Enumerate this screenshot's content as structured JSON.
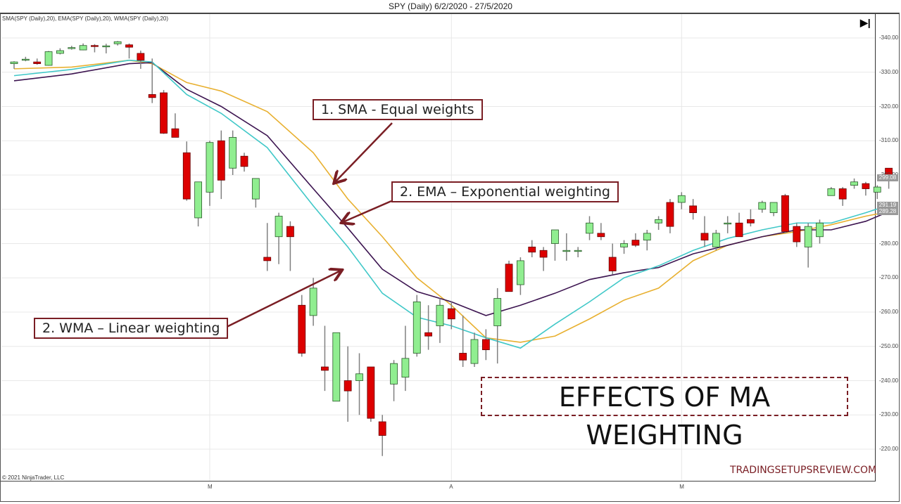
{
  "header": {
    "title": "SPY (Daily)  6/2/2020 - 27/5/2020"
  },
  "indicator_label": "SMA(SPY (Daily),20), EMA(SPY (Daily),20), WMA(SPY (Daily),20)",
  "copyright": "© 2021 NinjaTrader, LLC",
  "scroll_end_icon": "▶|",
  "callouts": {
    "sma": "1. SMA - Equal weights",
    "ema": "2. EMA – Exponential weighting",
    "wma": "2. WMA – Linear weighting"
  },
  "headline": "EFFECTS OF MA WEIGHTING",
  "watermark": "TRADINGSETUPSREVIEW.COM",
  "colors": {
    "up": "#90ee90",
    "down": "#dd0000",
    "wick": "#808080",
    "sma": "#e8b030",
    "ema": "#40c8c8",
    "wma": "#3c1450",
    "annotation": "#7a1e24"
  },
  "price_tags": [
    {
      "label": "299.08",
      "price": 299.08
    },
    {
      "label": "291.19",
      "price": 291.19
    },
    {
      "label": "289.28",
      "price": 289.28
    }
  ],
  "chart_data": {
    "type": "candlestick",
    "title": "SPY (Daily)  6/2/2020 - 27/5/2020",
    "ylim": [
      215,
      345
    ],
    "yticks": [
      220,
      230,
      240,
      250,
      260,
      270,
      280,
      290,
      300,
      310,
      320,
      330,
      340
    ],
    "xticks": [
      {
        "label": "M",
        "index": 17
      },
      {
        "label": "A",
        "index": 38
      },
      {
        "label": "M",
        "index": 58
      }
    ],
    "legend": [
      "SMA(SPY (Daily),20)",
      "EMA(SPY (Daily),20)",
      "WMA(SPY (Daily),20)"
    ],
    "candles": [
      [
        332.5,
        333.2,
        331.0,
        333.0
      ],
      [
        333.8,
        334.5,
        333.2,
        333.8
      ],
      [
        333.0,
        334.0,
        332.2,
        332.5
      ],
      [
        332.0,
        336.2,
        331.9,
        336.0
      ],
      [
        335.5,
        337.0,
        335.2,
        336.3
      ],
      [
        337.0,
        337.7,
        336.6,
        337.2
      ],
      [
        336.5,
        338.4,
        336.4,
        337.8
      ],
      [
        337.8,
        338.2,
        335.8,
        337.6
      ],
      [
        337.7,
        338.3,
        335.5,
        337.7
      ],
      [
        338.3,
        339.1,
        337.8,
        338.9
      ],
      [
        338.0,
        338.4,
        334.0,
        337.3
      ],
      [
        335.5,
        336.3,
        331.0,
        333.5
      ],
      [
        323.5,
        334.0,
        321.0,
        322.6
      ],
      [
        324.0,
        324.8,
        312.0,
        312.2
      ],
      [
        313.5,
        318.0,
        311.0,
        311.0
      ],
      [
        306.5,
        309.8,
        292.5,
        293.0
      ],
      [
        287.5,
        295.0,
        285.0,
        298.0
      ],
      [
        295.0,
        310.0,
        291.0,
        309.5
      ],
      [
        310.0,
        313.0,
        293.0,
        298.5
      ],
      [
        302.0,
        313.0,
        300.0,
        311.0
      ],
      [
        305.5,
        306.5,
        301.0,
        302.5
      ],
      [
        293.0,
        299.0,
        290.5,
        299.0
      ],
      [
        276.0,
        286.0,
        272.0,
        275.0
      ],
      [
        282.0,
        289.0,
        274.0,
        288.0
      ],
      [
        285.0,
        286.5,
        272.0,
        282.0
      ],
      [
        262.0,
        265.0,
        247.0,
        248.0
      ],
      [
        259.0,
        270.0,
        256.0,
        267.0
      ],
      [
        244.0,
        256.0,
        237.0,
        243.0
      ],
      [
        234.0,
        254.0,
        238.0,
        254.0
      ],
      [
        240.0,
        250.0,
        228.0,
        237.0
      ],
      [
        240.0,
        248.0,
        230.0,
        242.0
      ],
      [
        244.0,
        244.0,
        228.0,
        229.0
      ],
      [
        228.0,
        230.0,
        218.0,
        224.0
      ],
      [
        239.0,
        246.0,
        234.0,
        245.0
      ],
      [
        241.0,
        256.0,
        237.0,
        246.5
      ],
      [
        248.0,
        265.0,
        247.0,
        263.0
      ],
      [
        254.0,
        262.0,
        249.0,
        253.0
      ],
      [
        256.0,
        264.0,
        251.0,
        262.0
      ],
      [
        261.0,
        263.0,
        255.0,
        258.0
      ],
      [
        248.0,
        259.0,
        244.0,
        246.0
      ],
      [
        245.0,
        254.0,
        244.0,
        252.0
      ],
      [
        252.0,
        255.0,
        246.0,
        249.0
      ],
      [
        256.0,
        267.0,
        245.0,
        264.0
      ],
      [
        274.0,
        275.0,
        266.0,
        266.0
      ],
      [
        268.0,
        276.0,
        265.0,
        275.0
      ],
      [
        279.0,
        281.0,
        276.0,
        277.5
      ],
      [
        278.0,
        279.0,
        272.0,
        276.0
      ],
      [
        280.0,
        284.0,
        275.0,
        284.0
      ],
      [
        278.0,
        283.0,
        275.0,
        278.0
      ],
      [
        278.0,
        279.0,
        276.0,
        278.0
      ],
      [
        283.0,
        288.0,
        281.0,
        286.0
      ],
      [
        283.0,
        286.0,
        281.0,
        282.0
      ],
      [
        276.0,
        280.0,
        271.0,
        272.0
      ],
      [
        279.0,
        281.0,
        277.0,
        280.0
      ],
      [
        281.0,
        283.0,
        279.0,
        279.5
      ],
      [
        281.0,
        284.0,
        278.0,
        283.0
      ],
      [
        286.0,
        288.0,
        284.0,
        287.0
      ],
      [
        292.0,
        293.0,
        283.0,
        285.0
      ],
      [
        292.0,
        295.0,
        290.0,
        294.0
      ],
      [
        291.0,
        293.0,
        287.0,
        289.0
      ],
      [
        283.0,
        288.0,
        279.0,
        281.0
      ],
      [
        279.0,
        284.0,
        278.0,
        283.0
      ],
      [
        286.0,
        288.0,
        283.0,
        286.0
      ],
      [
        286.0,
        289.0,
        282.0,
        282.0
      ],
      [
        287.0,
        290.0,
        285.0,
        286.0
      ],
      [
        290.0,
        292.5,
        289.0,
        292.0
      ],
      [
        289.0,
        292.0,
        288.0,
        292.0
      ],
      [
        294.0,
        294.5,
        283.0,
        283.5
      ],
      [
        285.0,
        286.0,
        279.0,
        280.5
      ],
      [
        279.0,
        286.0,
        273.0,
        285.0
      ],
      [
        282.0,
        287.0,
        280.0,
        286.0
      ],
      [
        294.0,
        296.5,
        294.0,
        296.0
      ],
      [
        296.0,
        296.5,
        291.0,
        293.0
      ],
      [
        297.0,
        299.0,
        296.0,
        298.0
      ],
      [
        297.5,
        298.0,
        294.0,
        296.0
      ],
      [
        295.0,
        297.0,
        293.0,
        296.5
      ],
      [
        302.0,
        302.0,
        296.0,
        299.0
      ]
    ],
    "sma": [
      [
        0,
        331.0
      ],
      [
        5,
        331.5
      ],
      [
        10,
        333.5
      ],
      [
        12,
        332.5
      ],
      [
        15,
        327.0
      ],
      [
        18,
        324.5
      ],
      [
        22,
        318.5
      ],
      [
        26,
        306.5
      ],
      [
        29,
        293.0
      ],
      [
        32,
        282.0
      ],
      [
        35,
        270.0
      ],
      [
        38,
        262.0
      ],
      [
        41,
        252.5
      ],
      [
        44,
        251.2
      ],
      [
        47,
        253.0
      ],
      [
        50,
        258.0
      ],
      [
        53,
        263.5
      ],
      [
        56,
        267.0
      ],
      [
        59,
        275.0
      ],
      [
        62,
        279.5
      ],
      [
        65,
        282.0
      ],
      [
        68,
        283.5
      ],
      [
        71,
        285.5
      ],
      [
        74,
        288.0
      ],
      [
        76,
        289.3
      ]
    ],
    "ema": [
      [
        0,
        329.0
      ],
      [
        5,
        330.8
      ],
      [
        10,
        333.5
      ],
      [
        12,
        333.0
      ],
      [
        15,
        323.5
      ],
      [
        18,
        318.0
      ],
      [
        22,
        308.0
      ],
      [
        26,
        291.0
      ],
      [
        29,
        279.0
      ],
      [
        32,
        265.5
      ],
      [
        35,
        258.5
      ],
      [
        38,
        256.0
      ],
      [
        41,
        252.5
      ],
      [
        44,
        249.5
      ],
      [
        47,
        256.5
      ],
      [
        50,
        263.0
      ],
      [
        53,
        270.0
      ],
      [
        56,
        273.5
      ],
      [
        59,
        278.0
      ],
      [
        62,
        281.5
      ],
      [
        65,
        284.0
      ],
      [
        68,
        286.0
      ],
      [
        71,
        286.0
      ],
      [
        74,
        289.0
      ],
      [
        76,
        291.2
      ]
    ],
    "wma": [
      [
        0,
        327.5
      ],
      [
        5,
        329.5
      ],
      [
        10,
        332.5
      ],
      [
        12,
        332.8
      ],
      [
        15,
        325.0
      ],
      [
        18,
        320.0
      ],
      [
        22,
        311.5
      ],
      [
        26,
        296.0
      ],
      [
        29,
        284.5
      ],
      [
        32,
        272.5
      ],
      [
        35,
        266.0
      ],
      [
        38,
        263.0
      ],
      [
        41,
        259.0
      ],
      [
        44,
        262.0
      ],
      [
        47,
        265.5
      ],
      [
        50,
        269.5
      ],
      [
        53,
        271.5
      ],
      [
        56,
        273.0
      ],
      [
        59,
        277.0
      ],
      [
        62,
        279.5
      ],
      [
        65,
        282.0
      ],
      [
        68,
        284.0
      ],
      [
        71,
        284.0
      ],
      [
        74,
        286.5
      ],
      [
        76,
        289.3
      ]
    ]
  }
}
